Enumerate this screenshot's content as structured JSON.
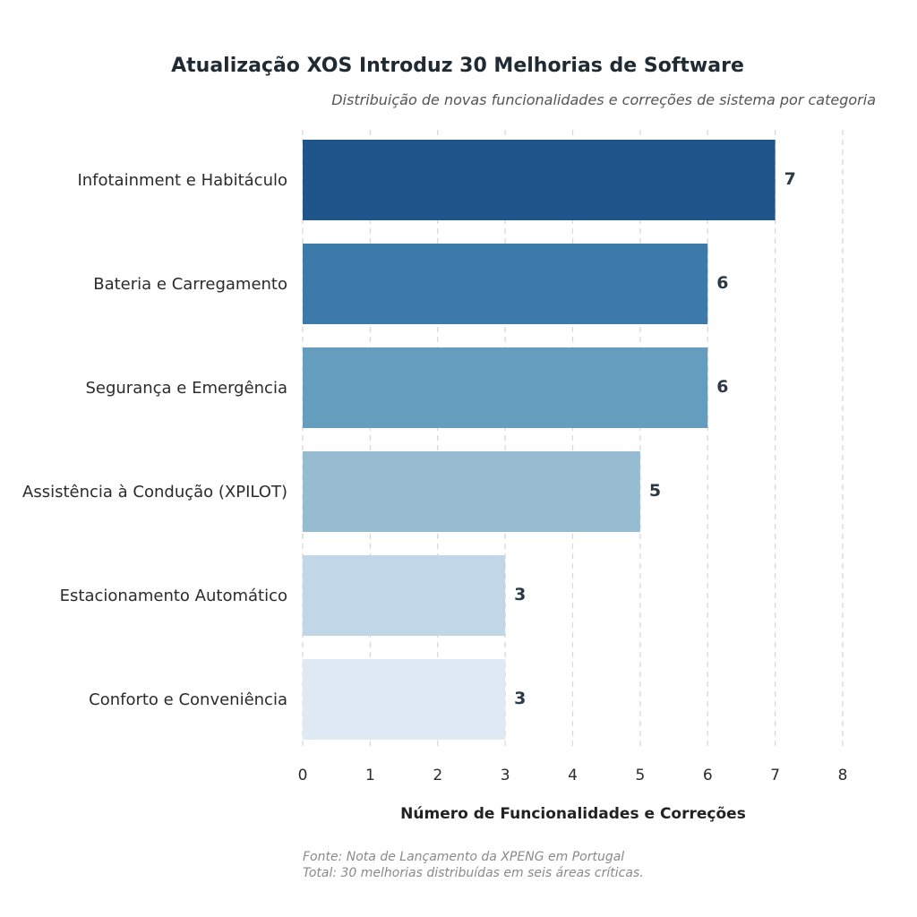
{
  "chart_data": {
    "type": "bar",
    "orientation": "horizontal",
    "title": "Atualização XOS Introduz 30 Melhorias de Software",
    "subtitle": "Distribuição de novas funcionalidades e correções de sistema por categoria",
    "xlabel": "Número de Funcionalidades e Correções",
    "ylabel": "",
    "categories": [
      "Infotainment e Habitáculo",
      "Bateria e Carregamento",
      "Segurança e Emergência",
      "Assistência à Condução (XPILOT)",
      "Estacionamento Automático",
      "Conforto e Conveniência"
    ],
    "values": [
      7,
      6,
      6,
      5,
      3,
      3
    ],
    "colors": [
      "#1f558b",
      "#3c7aa9",
      "#649dbd",
      "#97bcd2",
      "#c1d6e7",
      "#dfe9f3"
    ],
    "xlim": [
      0,
      8
    ],
    "xticks": [
      0,
      1,
      2,
      3,
      4,
      5,
      6,
      7,
      8
    ],
    "grid": "vertical dashed",
    "legend": "none",
    "footnotes": [
      "Fonte: Nota de Lançamento da XPENG em Portugal",
      "Total: 30 melhorias distribuídas em seis áreas críticas."
    ]
  }
}
